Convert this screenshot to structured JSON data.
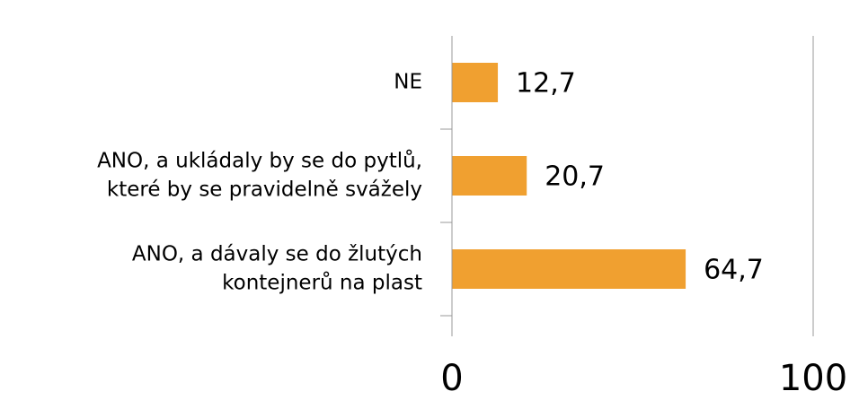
{
  "chart_data": {
    "type": "hbar",
    "categories": [
      [
        "NE"
      ],
      [
        "ANO, a ukládaly by se do pytlů,",
        "které by se pravidelně svážely"
      ],
      [
        "ANO, a dávaly se do žlutých",
        "kontejnerů na plast"
      ]
    ],
    "values": [
      12.7,
      20.7,
      64.7
    ],
    "value_labels": [
      "12,7",
      "20,7",
      "64,7"
    ],
    "color": "#f0a030",
    "xlim": [
      0,
      100
    ],
    "xticks": [
      0,
      100
    ],
    "grid": true
  }
}
